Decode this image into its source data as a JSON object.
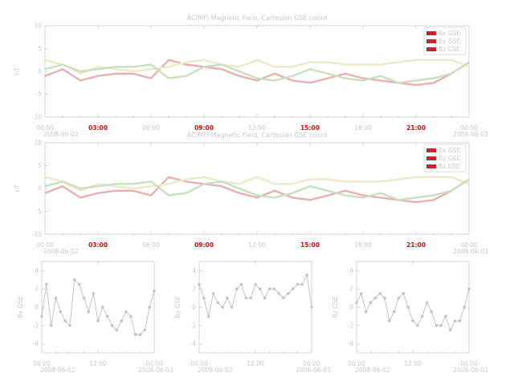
{
  "chart_data": [
    {
      "type": "line",
      "title": "AC/MFI  Magnetic Field, Cartesian GSE coord",
      "ylabel": "nT",
      "ylim": [
        -10,
        10
      ],
      "yticks": [
        "10",
        "5",
        "0",
        "-5",
        "-10"
      ],
      "xticks": [
        "00:00",
        "03:00",
        "06:00",
        "09:00",
        "12:00",
        "15:00",
        "18:00",
        "21:00",
        "00:00"
      ],
      "xticks_highlighted": [
        false,
        true,
        false,
        true,
        false,
        true,
        false,
        true,
        false
      ],
      "xdate_start": "2008-06-02",
      "xdate_end": "2008-06-03",
      "x_unit": "hour",
      "x": [
        0,
        1,
        2,
        3,
        4,
        5,
        6,
        7,
        8,
        9,
        10,
        11,
        12,
        13,
        14,
        15,
        16,
        17,
        18,
        19,
        20,
        21,
        22,
        23,
        24
      ],
      "legend_position": "top-right",
      "series": [
        {
          "name": "Bx GSE",
          "color": "#e8b0b0",
          "values": [
            -1,
            0.5,
            -2,
            -1,
            -0.5,
            -0.5,
            -1.5,
            2.5,
            1.5,
            1,
            0.5,
            -1,
            -2,
            -0.5,
            -2,
            -2.5,
            -1.5,
            -0.5,
            -1.5,
            -2,
            -2.5,
            -3,
            -2.5,
            -0.5,
            2
          ]
        },
        {
          "name": "By GSE",
          "color": "#eeeac8",
          "values": [
            2.5,
            1.5,
            -0.5,
            1,
            0.5,
            0,
            0.5,
            1,
            2,
            2.5,
            1.5,
            1,
            2.5,
            1,
            1,
            2,
            2,
            1.5,
            1.5,
            1.5,
            2,
            2.5,
            2.5,
            2.5,
            1
          ]
        },
        {
          "name": "Bz GSE",
          "color": "#c8e0c0",
          "values": [
            0.5,
            1.5,
            0,
            0.5,
            1,
            1,
            1.5,
            -1.5,
            -1,
            1,
            1.5,
            0,
            -1.5,
            -2,
            -1,
            0.5,
            -0.5,
            -1.5,
            -2,
            -1,
            -2.5,
            -2,
            -1.5,
            -0.5,
            2
          ]
        }
      ]
    },
    {
      "type": "line",
      "title": "AC/MFI  Magnetic Field, Cartesian GSE coord",
      "ylabel": "nT",
      "ylim": [
        -10,
        10
      ],
      "yticks": [
        "10",
        "5",
        "0",
        "-5",
        "-10"
      ],
      "xticks": [
        "00:00",
        "03:00",
        "06:00",
        "09:00",
        "12:00",
        "15:00",
        "18:00",
        "21:00",
        "00:00"
      ],
      "xticks_highlighted": [
        false,
        true,
        false,
        true,
        false,
        true,
        false,
        true,
        false
      ],
      "xdate_start": "2008-06-02",
      "xdate_end": "2008-06-03",
      "x_unit": "hour",
      "x": [
        0,
        1,
        2,
        3,
        4,
        5,
        6,
        7,
        8,
        9,
        10,
        11,
        12,
        13,
        14,
        15,
        16,
        17,
        18,
        19,
        20,
        21,
        22,
        23,
        24
      ],
      "legend_position": "top-right",
      "series": [
        {
          "name": "Bx GSE",
          "color": "#e8b0b0",
          "values": [
            -1,
            0.5,
            -2,
            -1,
            -0.5,
            -0.5,
            -1.5,
            2.5,
            1.5,
            1,
            0.5,
            -1,
            -2,
            -0.5,
            -2,
            -2.5,
            -1.5,
            -0.5,
            -1.5,
            -2,
            -2.5,
            -3,
            -2.5,
            -0.5,
            2
          ]
        },
        {
          "name": "By GSE",
          "color": "#eeeac8",
          "values": [
            2.5,
            1.5,
            -0.5,
            1,
            0.5,
            0,
            0.5,
            1,
            2,
            2.5,
            1.5,
            1,
            2.5,
            1,
            1,
            2,
            2,
            1.5,
            1.5,
            1.5,
            2,
            2.5,
            2.5,
            2.5,
            1
          ]
        },
        {
          "name": "Bz GSE",
          "color": "#c8e0c0",
          "values": [
            0.5,
            1.5,
            0,
            0.5,
            1,
            1,
            1.5,
            -1.5,
            -1,
            1,
            1.5,
            0,
            -1.5,
            -2,
            -1,
            0.5,
            -0.5,
            -1.5,
            -2,
            -1,
            -2.5,
            -2,
            -1.5,
            -0.5,
            2
          ]
        }
      ]
    },
    {
      "type": "scatter",
      "ylabel": "Bx GSE",
      "ylim": [
        -5,
        5
      ],
      "yticks": [
        "4",
        "2",
        "0",
        "-2",
        "-4"
      ],
      "xticks": [
        "00:00",
        "12:00",
        "00:00"
      ],
      "xdate_start": "2008-06-02",
      "xdate_end": "2008-06-03",
      "x_unit": "hour",
      "x": [
        0,
        1,
        2,
        3,
        4,
        5,
        6,
        7,
        8,
        9,
        10,
        11,
        12,
        13,
        14,
        15,
        16,
        17,
        18,
        19,
        20,
        21,
        22,
        23,
        24
      ],
      "color": "#c4c4c4",
      "values": [
        -1,
        2.5,
        -2,
        1,
        -0.5,
        -1.5,
        -2,
        3,
        2.5,
        1,
        -0.5,
        1.5,
        -1.5,
        0,
        -1,
        -2,
        -2.5,
        -1.5,
        -0.5,
        -1,
        -3,
        -3,
        -2.5,
        0,
        1.8
      ]
    },
    {
      "type": "scatter",
      "ylabel": "By GSE",
      "ylim": [
        -5,
        5
      ],
      "yticks": [
        "4",
        "2",
        "0",
        "-2",
        "-4"
      ],
      "xticks": [
        "00:00",
        "12:00",
        "00:00"
      ],
      "xdate_start": "2008-06-02",
      "xdate_end": "2008-06-03",
      "x_unit": "hour",
      "x": [
        0,
        1,
        2,
        3,
        4,
        5,
        6,
        7,
        8,
        9,
        10,
        11,
        12,
        13,
        14,
        15,
        16,
        17,
        18,
        19,
        20,
        21,
        22,
        23,
        24
      ],
      "color": "#c4c4c4",
      "values": [
        2.5,
        1,
        -1,
        1.5,
        0.5,
        0,
        1,
        0,
        2,
        2.5,
        1,
        1,
        2.5,
        2,
        1,
        2,
        2,
        1.5,
        1,
        1.5,
        2,
        2.5,
        2.5,
        3.5,
        0
      ]
    },
    {
      "type": "scatter",
      "ylabel": "Bz GSE",
      "ylim": [
        -5,
        5
      ],
      "yticks": [
        "4",
        "2",
        "0",
        "-2",
        "-4"
      ],
      "xticks": [
        "00:00",
        "12:00",
        "00:00"
      ],
      "xdate_start": "2008-06-02",
      "xdate_end": "2008-06-03",
      "x_unit": "hour",
      "x": [
        0,
        1,
        2,
        3,
        4,
        5,
        6,
        7,
        8,
        9,
        10,
        11,
        12,
        13,
        14,
        15,
        16,
        17,
        18,
        19,
        20,
        21,
        22,
        23,
        24
      ],
      "color": "#c4c4c4",
      "values": [
        0.5,
        1.5,
        -0.5,
        0.5,
        1,
        1.5,
        1,
        -1.5,
        -0.5,
        1,
        1.5,
        0,
        -1.5,
        -2,
        -1,
        0.5,
        -0.5,
        -2,
        -2,
        -1,
        -2.5,
        -1.5,
        -1.5,
        0,
        2
      ]
    }
  ]
}
